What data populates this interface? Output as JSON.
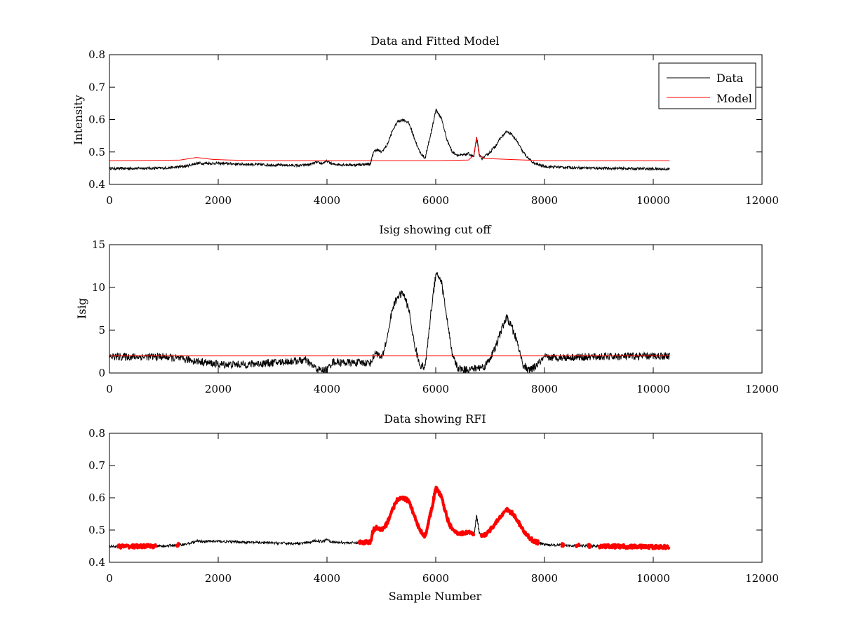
{
  "chart_data": [
    {
      "type": "line",
      "title": "Data and Fitted Model",
      "xlabel": "",
      "ylabel": "Intensity",
      "xlim": [
        0,
        12000
      ],
      "ylim": [
        0.4,
        0.8
      ],
      "xticks": [
        0,
        2000,
        4000,
        6000,
        8000,
        10000,
        12000
      ],
      "xtick_labels": [
        "0",
        "2000",
        "4000",
        "6000",
        "8000",
        "10000",
        "12000"
      ],
      "yticks": [
        0.4,
        0.5,
        0.6,
        0.7,
        0.8
      ],
      "ytick_labels": [
        "0.4",
        "0.5",
        "0.6",
        "0.7",
        "0.8"
      ],
      "grid": false,
      "legend": {
        "position": "top-right",
        "entries": [
          "Data",
          "Model"
        ]
      },
      "series": [
        {
          "name": "Data",
          "color": "#000000",
          "noise": 0.004,
          "x": [
            0,
            1000,
            1400,
            1600,
            2000,
            2500,
            3000,
            3500,
            3700,
            3800,
            3900,
            4000,
            4100,
            4500,
            4800,
            4850,
            4900,
            5000,
            5100,
            5200,
            5300,
            5400,
            5500,
            5600,
            5700,
            5800,
            5900,
            6000,
            6100,
            6200,
            6300,
            6400,
            6500,
            6600,
            6700,
            6750,
            6800,
            6850,
            6900,
            7000,
            7100,
            7200,
            7300,
            7400,
            7500,
            7600,
            7700,
            7800,
            8000,
            8500,
            9000,
            10300
          ],
          "y": [
            0.449,
            0.45,
            0.456,
            0.465,
            0.465,
            0.462,
            0.46,
            0.458,
            0.462,
            0.468,
            0.464,
            0.472,
            0.462,
            0.46,
            0.463,
            0.5,
            0.507,
            0.5,
            0.52,
            0.565,
            0.595,
            0.6,
            0.59,
            0.545,
            0.5,
            0.48,
            0.55,
            0.63,
            0.605,
            0.54,
            0.5,
            0.49,
            0.49,
            0.495,
            0.485,
            0.545,
            0.49,
            0.48,
            0.485,
            0.5,
            0.52,
            0.545,
            0.563,
            0.553,
            0.53,
            0.5,
            0.48,
            0.465,
            0.455,
            0.452,
            0.45,
            0.447
          ]
        },
        {
          "name": "Model",
          "color": "#ff0000",
          "noise": 0,
          "x": [
            0,
            1300,
            1600,
            1900,
            2200,
            2500,
            3000,
            6000,
            6600,
            6700,
            6750,
            6800,
            6900,
            7500,
            8000,
            10300
          ],
          "y": [
            0.473,
            0.475,
            0.483,
            0.477,
            0.475,
            0.474,
            0.473,
            0.473,
            0.475,
            0.49,
            0.545,
            0.49,
            0.48,
            0.476,
            0.473,
            0.473
          ]
        }
      ]
    },
    {
      "type": "line",
      "title": "Isig showing cut off",
      "xlabel": "",
      "ylabel": "Isig",
      "xlim": [
        0,
        12000
      ],
      "ylim": [
        0,
        15
      ],
      "xticks": [
        0,
        2000,
        4000,
        6000,
        8000,
        10000,
        12000
      ],
      "xtick_labels": [
        "0",
        "2000",
        "4000",
        "6000",
        "8000",
        "10000",
        "12000"
      ],
      "yticks": [
        0,
        5,
        10,
        15
      ],
      "ytick_labels": [
        "0",
        "5",
        "10",
        "15"
      ],
      "grid": false,
      "series": [
        {
          "color": "#000000",
          "noise": 0.45,
          "x": [
            0,
            1000,
            1500,
            2000,
            2500,
            3000,
            3600,
            3800,
            3900,
            4000,
            4100,
            4400,
            4800,
            4900,
            5000,
            5100,
            5200,
            5300,
            5400,
            5500,
            5600,
            5700,
            5800,
            5900,
            6000,
            6100,
            6200,
            6300,
            6400,
            6500,
            6700,
            6900,
            7000,
            7100,
            7200,
            7300,
            7400,
            7500,
            7600,
            7700,
            7800,
            8000,
            9000,
            10300
          ],
          "y": [
            1.9,
            1.9,
            1.5,
            1.0,
            1.0,
            1.2,
            1.5,
            0.5,
            0.3,
            0.4,
            1.3,
            1.2,
            1.2,
            2.5,
            1.6,
            4.0,
            7.5,
            9.0,
            9.3,
            7.5,
            3.5,
            1.0,
            0.6,
            6.5,
            11.8,
            10.8,
            6.5,
            2.0,
            0.6,
            0.4,
            0.5,
            0.8,
            1.8,
            3.0,
            5.0,
            6.5,
            5.3,
            3.5,
            1.0,
            0.3,
            0.6,
            1.8,
            1.9,
            2.0
          ]
        },
        {
          "color": "#ff0000",
          "noise": 0,
          "x": [
            0,
            10300
          ],
          "y": [
            2.0,
            2.0
          ]
        }
      ]
    },
    {
      "type": "line",
      "title": "Data showing RFI",
      "xlabel": "Sample Number",
      "ylabel": "",
      "xlim": [
        0,
        12000
      ],
      "ylim": [
        0.4,
        0.8
      ],
      "xticks": [
        0,
        2000,
        4000,
        6000,
        8000,
        10000,
        12000
      ],
      "xtick_labels": [
        "0",
        "2000",
        "4000",
        "6000",
        "8000",
        "10000",
        "12000"
      ],
      "yticks": [
        0.4,
        0.5,
        0.6,
        0.7,
        0.8
      ],
      "ytick_labels": [
        "0.4",
        "0.5",
        "0.6",
        "0.7",
        "0.8"
      ],
      "grid": false,
      "series": [
        {
          "color": "#000000",
          "noise": 0.004,
          "x": [
            0,
            1000,
            1400,
            1600,
            2000,
            2500,
            3000,
            3500,
            3700,
            3800,
            3900,
            4000,
            4100,
            4500,
            4800,
            4850,
            4900,
            5000,
            5100,
            5200,
            5300,
            5400,
            5500,
            5600,
            5700,
            5800,
            5900,
            6000,
            6100,
            6200,
            6300,
            6400,
            6500,
            6600,
            6700,
            6750,
            6800,
            6850,
            6900,
            7000,
            7100,
            7200,
            7300,
            7400,
            7500,
            7600,
            7700,
            7800,
            8000,
            8500,
            9000,
            10300
          ],
          "y": [
            0.449,
            0.45,
            0.456,
            0.465,
            0.465,
            0.462,
            0.46,
            0.458,
            0.462,
            0.468,
            0.464,
            0.472,
            0.462,
            0.46,
            0.463,
            0.5,
            0.507,
            0.5,
            0.52,
            0.565,
            0.595,
            0.6,
            0.59,
            0.545,
            0.5,
            0.48,
            0.55,
            0.63,
            0.605,
            0.54,
            0.5,
            0.49,
            0.49,
            0.495,
            0.485,
            0.545,
            0.49,
            0.48,
            0.485,
            0.5,
            0.52,
            0.545,
            0.563,
            0.553,
            0.53,
            0.5,
            0.48,
            0.465,
            0.455,
            0.452,
            0.45,
            0.447
          ]
        }
      ],
      "flagged_ranges": {
        "color": "#ff0000",
        "ranges": [
          [
            150,
            850
          ],
          [
            1230,
            1290
          ],
          [
            4580,
            6700
          ],
          [
            6830,
            7900
          ],
          [
            8300,
            8360
          ],
          [
            8580,
            8640
          ],
          [
            8800,
            8860
          ],
          [
            9000,
            10300
          ]
        ]
      }
    }
  ]
}
